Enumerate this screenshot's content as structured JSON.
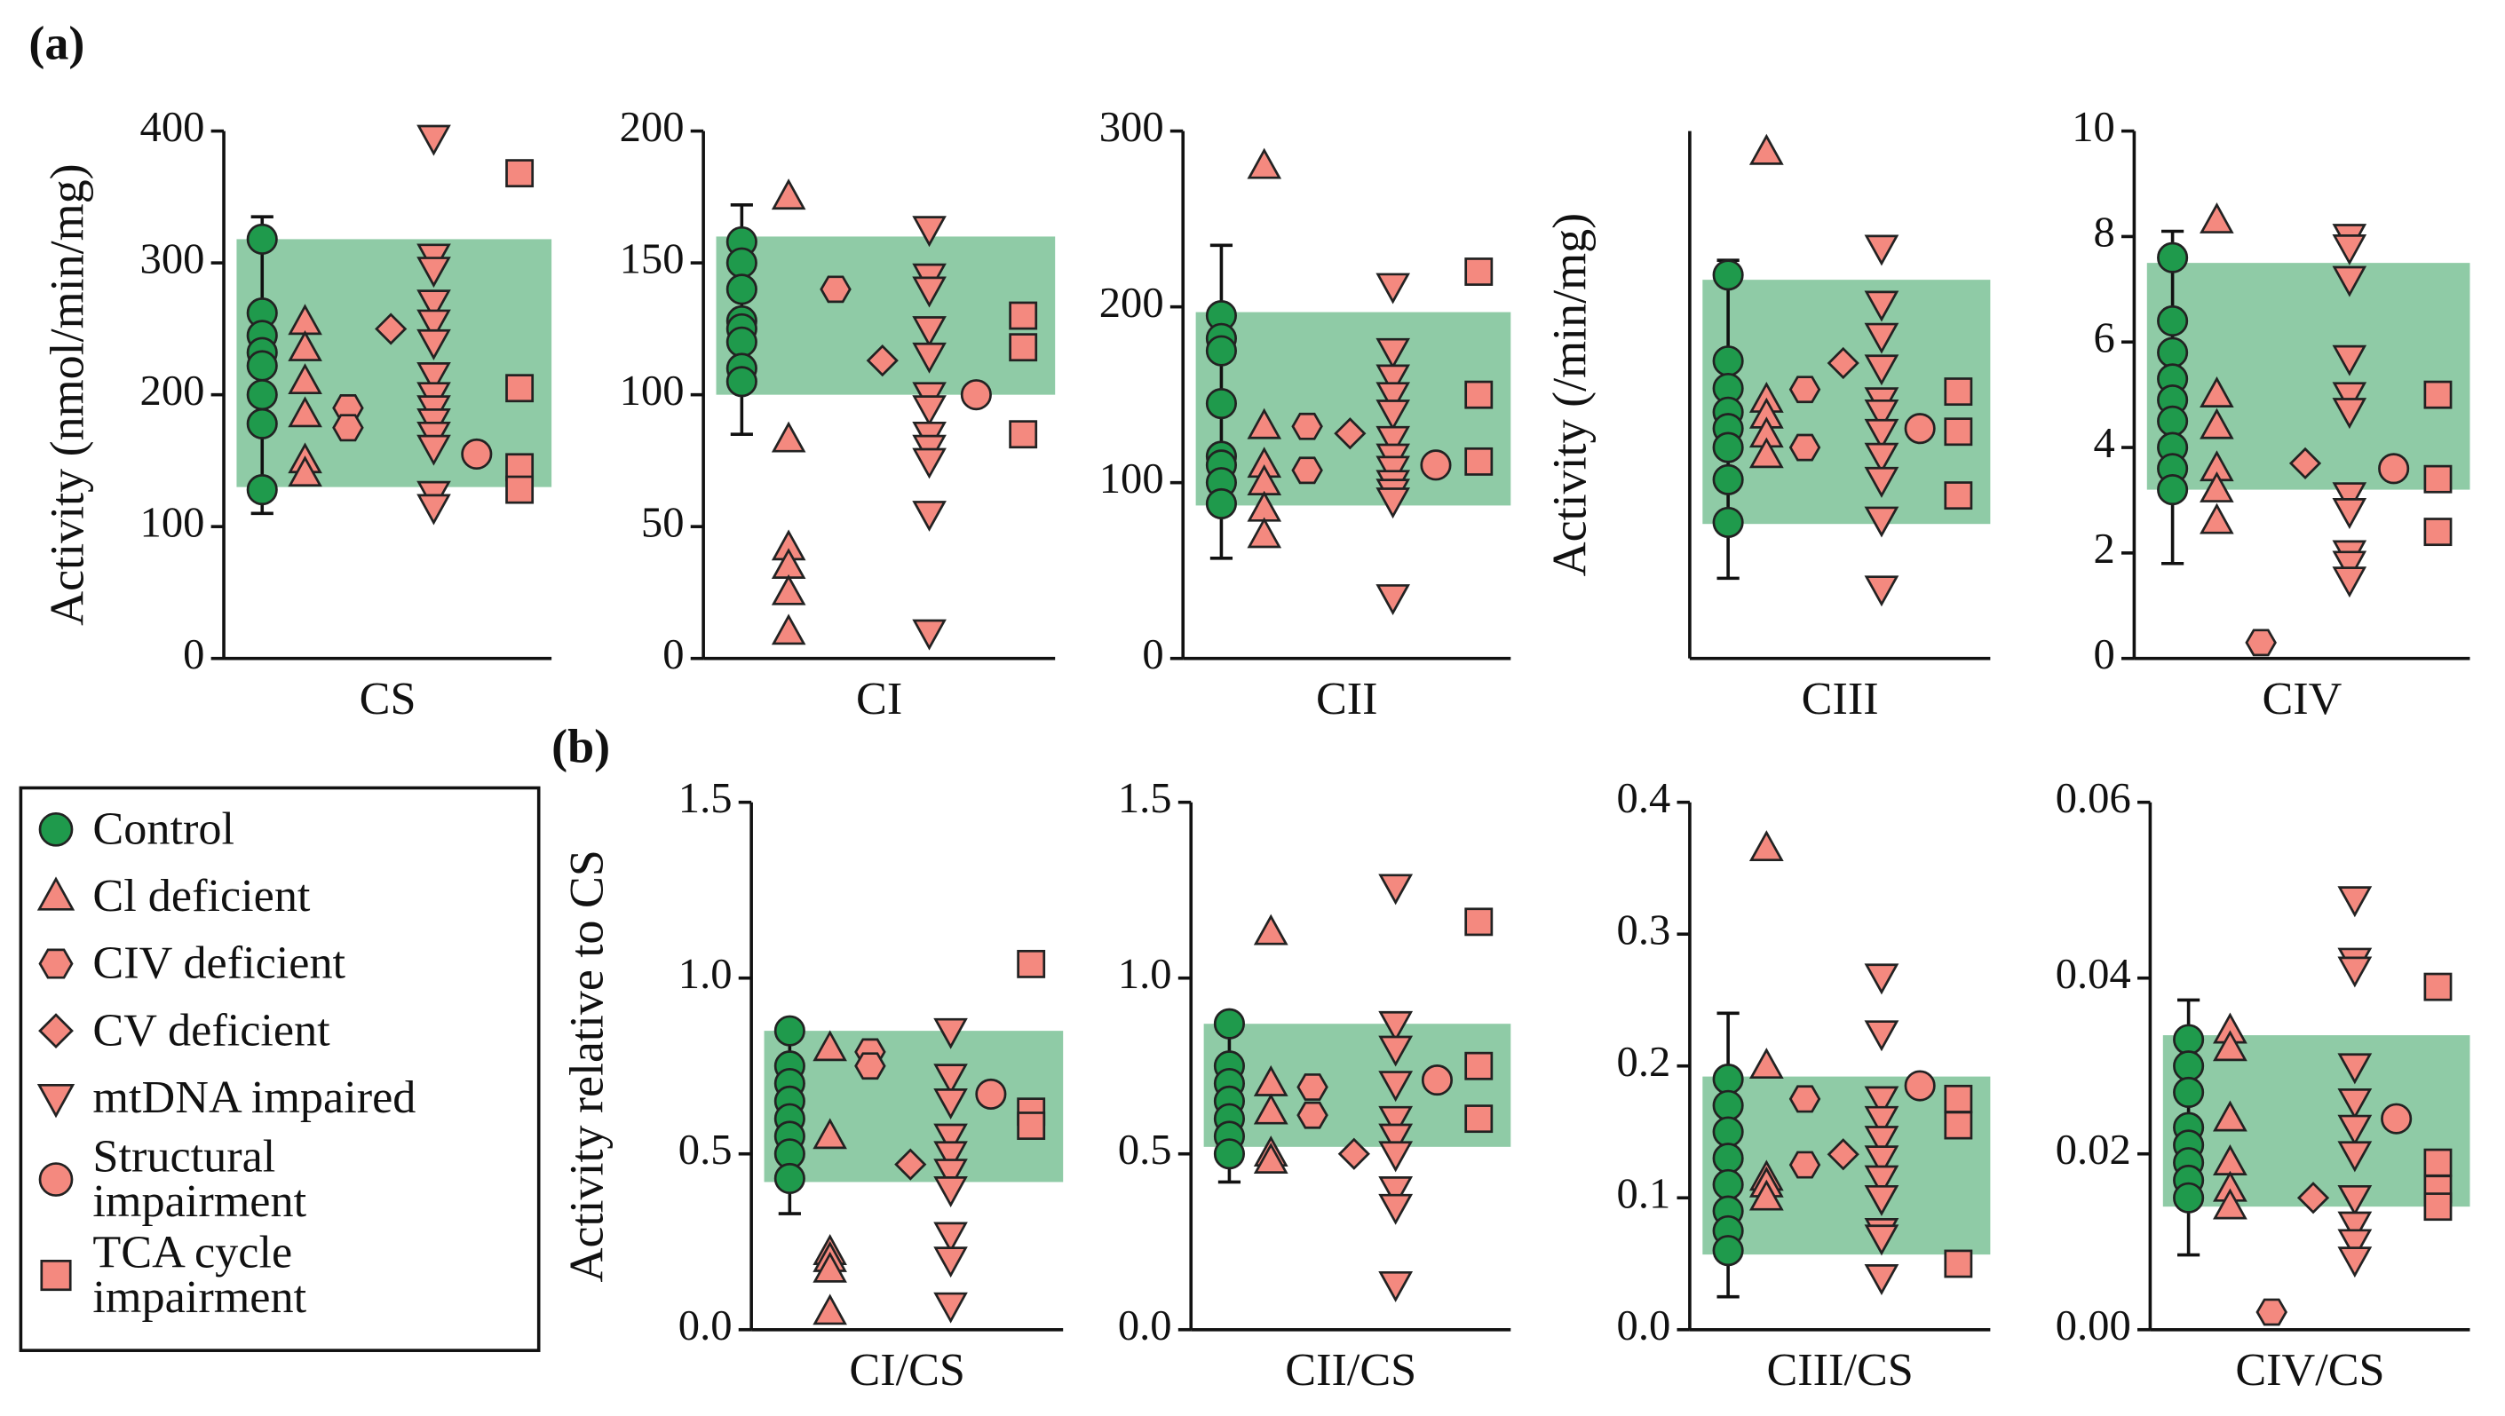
{
  "panel_labels": [
    "(a)",
    "(b)"
  ],
  "range_color": "#8fcba6",
  "legend": [
    {
      "name": "Control",
      "color": "#1f9a4c",
      "marker": "circle"
    },
    {
      "name": "Cl deficient",
      "color": "#f4897f",
      "marker": "triangle-up"
    },
    {
      "name": "CIV deficient",
      "color": "#f4897f",
      "marker": "hexagon"
    },
    {
      "name": "CV deficient",
      "color": "#f4897f",
      "marker": "diamond"
    },
    {
      "name": "mtDNA impaired",
      "color": "#f4897f",
      "marker": "triangle-down"
    },
    {
      "name": "Structural impairment",
      "color": "#f4897f",
      "marker": "circle"
    },
    {
      "name": "TCA cycle impairment",
      "color": "#f4897f",
      "marker": "square"
    }
  ],
  "chart_data": [
    {
      "type": "dotplot",
      "xlabel": "CS",
      "ylabel": "Activity (nmol/min/mg)",
      "ylim": [
        0,
        400
      ],
      "yticks": [
        0,
        100,
        200,
        300,
        400
      ],
      "normal_range": [
        130,
        318
      ],
      "error_bar": [
        110,
        335
      ],
      "series": [
        {
          "values": [
            318,
            262,
            245,
            232,
            222,
            200,
            178,
            128
          ]
        },
        {
          "values": [
            255,
            235,
            210,
            185,
            150,
            140
          ]
        },
        {
          "values": [
            190,
            175
          ]
        },
        {
          "values": [
            250
          ]
        },
        {
          "values": [
            395,
            305,
            295,
            270,
            255,
            240,
            215,
            200,
            190,
            180,
            170,
            160,
            125,
            115
          ]
        },
        {
          "values": [
            155
          ]
        },
        {
          "values": [
            368,
            205,
            145,
            128
          ]
        }
      ]
    },
    {
      "type": "dotplot",
      "xlabel": "CI",
      "ylim": [
        0,
        200
      ],
      "yticks": [
        0,
        50,
        100,
        150,
        200
      ],
      "normal_range": [
        100,
        160
      ],
      "error_bar": [
        85,
        172
      ],
      "series": [
        {
          "values": [
            158,
            150,
            140,
            128,
            125,
            120,
            110,
            105
          ]
        },
        {
          "values": [
            175,
            83,
            42,
            35,
            25,
            10
          ]
        },
        {
          "values": [
            140
          ]
        },
        {
          "values": [
            113
          ]
        },
        {
          "values": [
            163,
            145,
            140,
            125,
            115,
            100,
            95,
            85,
            80,
            75,
            55,
            10
          ]
        },
        {
          "values": [
            100
          ]
        },
        {
          "values": [
            130,
            118,
            85
          ]
        }
      ]
    },
    {
      "type": "dotplot",
      "xlabel": "CII",
      "ylim": [
        0,
        300
      ],
      "yticks": [
        0,
        100,
        200,
        300
      ],
      "normal_range": [
        87,
        197
      ],
      "error_bar": [
        57,
        235
      ],
      "series": [
        {
          "values": [
            195,
            182,
            175,
            145,
            115,
            110,
            100,
            88
          ]
        },
        {
          "values": [
            280,
            132,
            110,
            100,
            85,
            70
          ]
        },
        {
          "values": [
            132,
            107
          ]
        },
        {
          "values": [
            128
          ]
        },
        {
          "values": [
            212,
            175,
            160,
            150,
            140,
            125,
            115,
            108,
            100,
            95,
            90,
            35
          ]
        },
        {
          "values": [
            110
          ]
        },
        {
          "values": [
            220,
            150,
            112
          ]
        }
      ]
    },
    {
      "type": "dotplot",
      "xlabel": "CIII",
      "ylabel": "Activity (/min/mg)",
      "ylim": [
        0,
        100
      ],
      "yticks": [],
      "normal_range": [
        25.5,
        71.8
      ],
      "error_bar": [
        15.2,
        75.5
      ],
      "series": [
        {
          "values": [
            72.7,
            56.4,
            51.2,
            46.7,
            43.6,
            40,
            33.9,
            25.8
          ]
        },
        {
          "values": [
            96,
            49,
            46,
            42.4,
            38.5
          ]
        },
        {
          "values": [
            51,
            40
          ]
        },
        {
          "values": [
            56
          ]
        },
        {
          "values": [
            77.9,
            67.3,
            61.2,
            55.2,
            49,
            46.7,
            43,
            38.5,
            33.9,
            26.4,
            13.3
          ]
        },
        {
          "values": [
            43.6
          ]
        },
        {
          "values": [
            50.6,
            43,
            30.9
          ]
        }
      ]
    },
    {
      "type": "dotplot",
      "xlabel": "CIV",
      "ylim": [
        0,
        10
      ],
      "yticks": [
        0,
        2,
        4,
        6,
        8,
        10
      ],
      "normal_range": [
        3.2,
        7.5
      ],
      "error_bar": [
        1.8,
        8.1
      ],
      "series": [
        {
          "values": [
            7.6,
            6.4,
            5.8,
            5.3,
            4.9,
            4.5,
            4.0,
            3.6,
            3.2
          ]
        },
        {
          "values": [
            8.3,
            5.0,
            4.4,
            3.6,
            3.2,
            2.6
          ]
        },
        {
          "values": [
            0.3
          ]
        },
        {
          "values": [
            3.7
          ]
        },
        {
          "values": [
            8.0,
            7.8,
            7.2,
            5.7,
            5.0,
            4.7,
            3.1,
            2.8,
            2.0,
            1.8,
            1.5
          ]
        },
        {
          "values": [
            3.6
          ]
        },
        {
          "values": [
            5.0,
            3.4,
            2.4
          ]
        }
      ]
    },
    {
      "type": "dotplot",
      "xlabel": "CI/CS",
      "ylabel": "Activity relative to CS",
      "ylim": [
        0,
        1.5
      ],
      "yticks": [
        {
          "value": 0,
          "label": "0.0"
        },
        0.5,
        {
          "value": 1,
          "label": "1.0"
        },
        1.5
      ],
      "normal_range": [
        0.42,
        0.85
      ],
      "error_bar": [
        0.33,
        0.85
      ],
      "series": [
        {
          "values": [
            0.85,
            0.75,
            0.7,
            0.65,
            0.6,
            0.55,
            0.5,
            0.43
          ]
        },
        {
          "values": [
            0.8,
            0.55,
            0.22,
            0.2,
            0.17,
            0.05
          ]
        },
        {
          "values": [
            0.79,
            0.75
          ]
        },
        {
          "values": [
            0.47
          ]
        },
        {
          "values": [
            0.85,
            0.72,
            0.65,
            0.55,
            0.5,
            0.45,
            0.4,
            0.27,
            0.2,
            0.07
          ]
        },
        {
          "values": [
            0.67
          ]
        },
        {
          "values": [
            1.04,
            0.62,
            0.58
          ]
        }
      ]
    },
    {
      "type": "dotplot",
      "xlabel": "CII/CS",
      "ylim": [
        0,
        1.5
      ],
      "yticks": [
        {
          "value": 0,
          "label": "0.0"
        },
        0.5,
        {
          "value": 1,
          "label": "1.0"
        },
        1.5
      ],
      "normal_range": [
        0.52,
        0.87
      ],
      "error_bar": [
        0.42,
        0.87
      ],
      "series": [
        {
          "values": [
            0.87,
            0.75,
            0.7,
            0.65,
            0.6,
            0.55,
            0.5
          ]
        },
        {
          "values": [
            1.13,
            0.7,
            0.62,
            0.5,
            0.48
          ]
        },
        {
          "values": [
            0.69,
            0.61
          ]
        },
        {
          "values": [
            0.5
          ]
        },
        {
          "values": [
            1.26,
            0.87,
            0.8,
            0.7,
            0.6,
            0.55,
            0.5,
            0.4,
            0.35,
            0.13
          ]
        },
        {
          "values": [
            0.71
          ]
        },
        {
          "values": [
            1.16,
            0.75,
            0.6
          ]
        }
      ]
    },
    {
      "type": "dotplot",
      "xlabel": "CIII/CS",
      "ylim": [
        0,
        0.4
      ],
      "yticks": [
        {
          "value": 0,
          "label": "0.0"
        },
        0.1,
        0.2,
        0.3,
        0.4
      ],
      "normal_range": [
        0.057,
        0.192
      ],
      "error_bar": [
        0.025,
        0.24
      ],
      "series": [
        {
          "values": [
            0.19,
            0.17,
            0.15,
            0.13,
            0.11,
            0.09,
            0.075,
            0.06
          ]
        },
        {
          "values": [
            0.365,
            0.2,
            0.115,
            0.11,
            0.1
          ]
        },
        {
          "values": [
            0.175,
            0.125
          ]
        },
        {
          "values": [
            0.133
          ]
        },
        {
          "values": [
            0.268,
            0.225,
            0.175,
            0.16,
            0.145,
            0.13,
            0.115,
            0.1,
            0.075,
            0.07,
            0.04
          ]
        },
        {
          "values": [
            0.185
          ]
        },
        {
          "values": [
            0.175,
            0.155,
            0.05
          ]
        }
      ]
    },
    {
      "type": "dotplot",
      "xlabel": "CIV/CS",
      "ylim": [
        0,
        0.06
      ],
      "yticks": [
        {
          "value": 0,
          "label": "0.00"
        },
        0.02,
        0.04,
        0.06
      ],
      "normal_range": [
        0.014,
        0.0335
      ],
      "error_bar": [
        0.0085,
        0.0375
      ],
      "series": [
        {
          "values": [
            0.033,
            0.03,
            0.027,
            0.023,
            0.021,
            0.019,
            0.017,
            0.015
          ]
        },
        {
          "values": [
            0.034,
            0.032,
            0.024,
            0.019,
            0.016,
            0.014
          ]
        },
        {
          "values": [
            0.002
          ]
        },
        {
          "values": [
            0.015
          ]
        },
        {
          "values": [
            0.049,
            0.042,
            0.041,
            0.03,
            0.026,
            0.023,
            0.02,
            0.015,
            0.012,
            0.01,
            0.008
          ]
        },
        {
          "values": [
            0.024
          ]
        },
        {
          "values": [
            0.039,
            0.019,
            0.016,
            0.014
          ]
        }
      ]
    }
  ]
}
